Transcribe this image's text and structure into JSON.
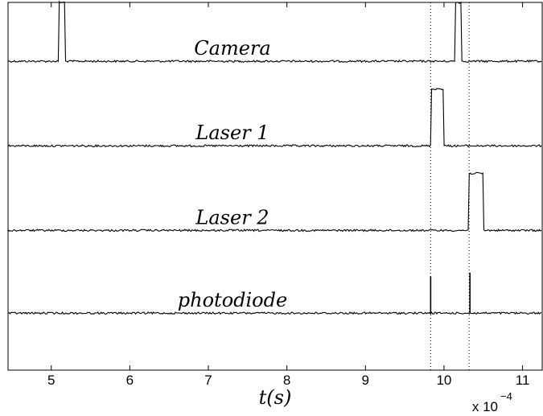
{
  "chart_data": {
    "type": "line",
    "xlabel": "t(s)",
    "x_exponent_label": "x 10",
    "x_exponent_power": "−4",
    "xlim": [
      4.45,
      11.25
    ],
    "x_ticks": [
      5,
      6,
      7,
      8,
      9,
      10,
      11
    ],
    "x_tick_labels": [
      "5",
      "6",
      "7",
      "8",
      "9",
      "10",
      "11"
    ],
    "y_tick_labels": [],
    "grid": false,
    "markers": [
      9.83,
      10.32
    ],
    "series": [
      {
        "name": "Camera",
        "baseline": 0.84,
        "high": 1.0,
        "pulses": [
          [
            5.1,
            5.18
          ],
          [
            10.14,
            10.22
          ]
        ]
      },
      {
        "name": "Laser 1",
        "baseline": 0.61,
        "high": 0.765,
        "pulses": [
          [
            9.83,
            10.0
          ]
        ]
      },
      {
        "name": "Laser 2",
        "baseline": 0.38,
        "high": 0.535,
        "pulses": [
          [
            10.32,
            10.5
          ]
        ]
      },
      {
        "name": "photodiode",
        "baseline": 0.155,
        "high": 0.155,
        "spikes": [
          [
            9.83,
            0.255
          ],
          [
            10.33,
            0.265
          ]
        ]
      }
    ]
  }
}
